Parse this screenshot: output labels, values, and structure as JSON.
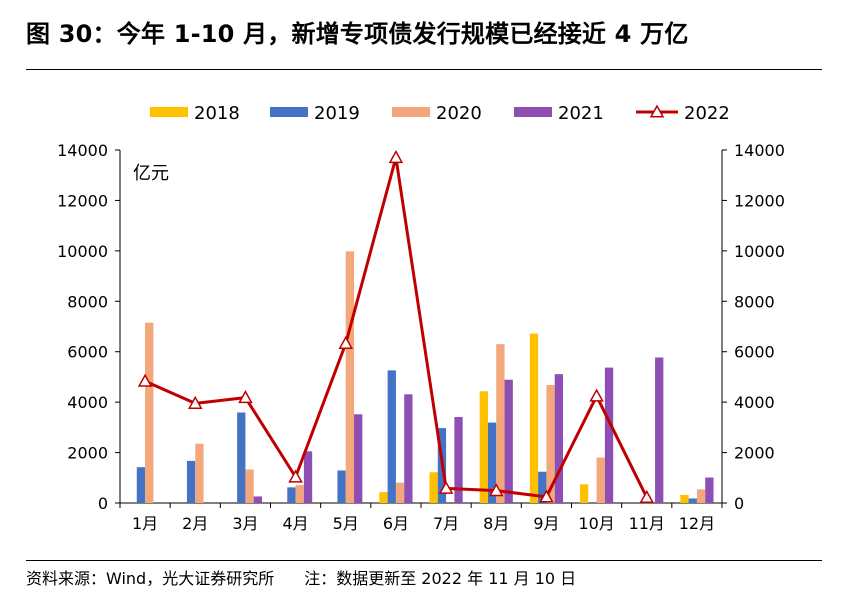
{
  "title": "图 30：今年 1-10 月，新增专项债发行规模已经接近 4 万亿",
  "footer": {
    "source": "资料来源：Wind，光大证券研究所",
    "note": "注：数据更新至 2022 年 11 月 10 日"
  },
  "colors": {
    "s2018": "#FFC000",
    "s2019": "#4472C4",
    "s2020": "#F4A77A",
    "s2021": "#8E4FB5",
    "s2022": "#C00000"
  },
  "chart_data": {
    "type": "bar",
    "unit_label": "亿元",
    "categories": [
      "1月",
      "2月",
      "3月",
      "4月",
      "5月",
      "6月",
      "7月",
      "8月",
      "9月",
      "10月",
      "11月",
      "12月"
    ],
    "ylim": [
      0,
      14000
    ],
    "yticks": [
      "0",
      "2000",
      "4000",
      "6000",
      "8000",
      "10000",
      "12000",
      "14000"
    ],
    "series": [
      {
        "name": "2018",
        "type": "bar",
        "values": [
          0,
          0,
          0,
          0,
          0,
          430,
          1220,
          4430,
          6720,
          740,
          0,
          320
        ]
      },
      {
        "name": "2019",
        "type": "bar",
        "values": [
          1420,
          1670,
          3590,
          620,
          1290,
          5260,
          2970,
          3190,
          1240,
          0,
          0,
          180
        ]
      },
      {
        "name": "2020",
        "type": "bar",
        "values": [
          7150,
          2350,
          1330,
          710,
          9980,
          810,
          0,
          6300,
          4680,
          1800,
          0,
          540
        ]
      },
      {
        "name": "2021",
        "type": "bar",
        "values": [
          0,
          0,
          260,
          2050,
          3520,
          4310,
          3410,
          4890,
          5110,
          5370,
          5770,
          1010
        ]
      },
      {
        "name": "2022",
        "type": "line",
        "values": [
          4830,
          3950,
          4180,
          1030,
          6330,
          13700,
          580,
          490,
          240,
          4240,
          220,
          null
        ]
      }
    ],
    "legend": [
      "2018",
      "2019",
      "2020",
      "2021",
      "2022"
    ],
    "legend_position": "top-center"
  }
}
